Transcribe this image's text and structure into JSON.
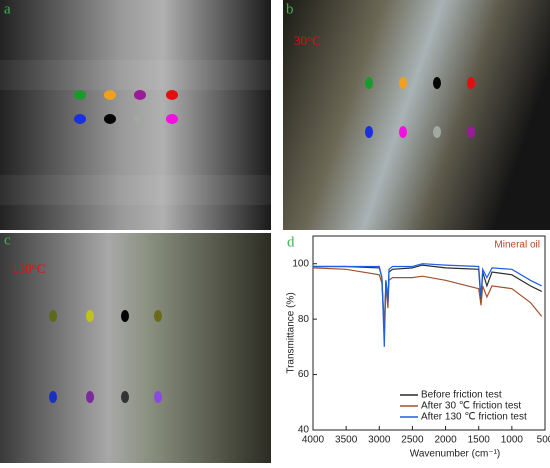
{
  "panels": [
    {
      "label": "a"
    },
    {
      "label": "b",
      "caption": "30°C"
    },
    {
      "label": "c",
      "caption": "130°C"
    }
  ],
  "chart_data": {
    "type": "line",
    "label": "d",
    "annotation": "Mineral oil",
    "x_label": "Wavenumber (cm⁻¹)",
    "y_label": "Transmittance (%)",
    "xlim": [
      4000,
      500
    ],
    "xticks": [
      4000,
      3500,
      3000,
      2500,
      2000,
      1500,
      1000,
      500
    ],
    "ylim": [
      40,
      110
    ],
    "yticks": [
      40,
      60,
      80,
      100
    ],
    "x": [
      4000,
      3500,
      3000,
      2960,
      2925,
      2900,
      2870,
      2853,
      2800,
      2500,
      2350,
      2000,
      1500,
      1465,
      1440,
      1377,
      1300,
      1000,
      720,
      550
    ],
    "series": [
      {
        "name": "Before friction test",
        "color": "#2b2b2b",
        "values": [
          99,
          99,
          98.5,
          95,
          76,
          94,
          86,
          97,
          98,
          98.5,
          99.5,
          98.5,
          98,
          86,
          97,
          92,
          97,
          96,
          92,
          90
        ]
      },
      {
        "name": "After 30 ℃ friction test",
        "color": "#a0522d",
        "values": [
          98.5,
          98,
          96,
          93,
          78,
          92,
          84,
          94,
          95,
          95,
          95.5,
          94,
          91,
          85,
          92,
          88,
          92,
          91,
          86,
          81
        ]
      },
      {
        "name": "After 130 ℃ friction test",
        "color": "#1f5fe0",
        "values": [
          99,
          99,
          99,
          95,
          70,
          94,
          86,
          98,
          99,
          99,
          100,
          99.5,
          99,
          88,
          98,
          95,
          98.5,
          98,
          94,
          92
        ]
      }
    ],
    "legend": "lower right"
  }
}
